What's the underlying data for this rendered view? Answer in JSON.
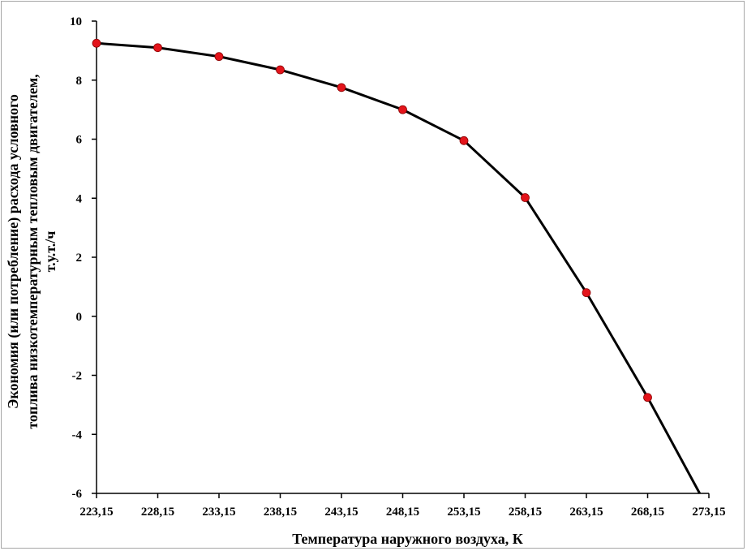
{
  "chart_data": {
    "type": "line",
    "title": "",
    "xlabel": "Температура наружного воздуха, К",
    "ylabel_lines": [
      "Экономия (или потребление) расхода условного",
      "топлива  низкотемпературным тепловым двигателем,",
      "т.у.т./ч"
    ],
    "x_ticks": [
      "223,15",
      "228,15",
      "233,15",
      "238,15",
      "243,15",
      "248,15",
      "253,15",
      "258,15",
      "263,15",
      "268,15",
      "273,15"
    ],
    "y_ticks": [
      "10",
      "8",
      "6",
      "4",
      "2",
      "0",
      "-2",
      "-4",
      "-6"
    ],
    "xlim": [
      223.15,
      273.15
    ],
    "ylim": [
      -6,
      10
    ],
    "grid": false,
    "series": [
      {
        "color": "#000000",
        "marker_color": "#e3141b",
        "x": [
          223.15,
          228.15,
          233.15,
          238.15,
          243.15,
          248.15,
          253.15,
          258.15,
          263.15,
          268.15
        ],
        "y": [
          9.25,
          9.1,
          8.8,
          8.35,
          7.75,
          7.0,
          5.95,
          4.02,
          0.8,
          -2.75
        ]
      }
    ],
    "line_extension_to": {
      "x": 272.4,
      "y": -6.0
    }
  }
}
